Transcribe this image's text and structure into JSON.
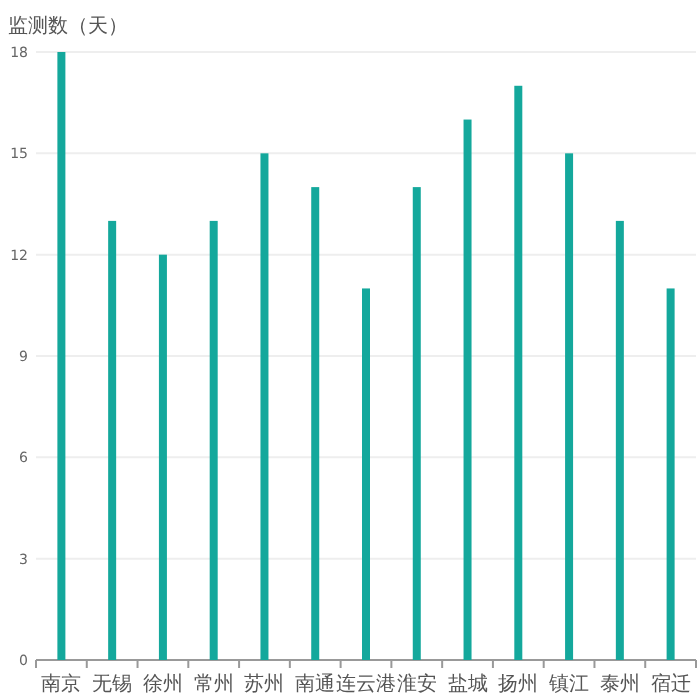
{
  "chart_data": {
    "type": "bar",
    "ylabel": "监测数（天）",
    "categories": [
      "南京",
      "无锡",
      "徐州",
      "常州",
      "苏州",
      "南通",
      "连云港",
      "淮安",
      "盐城",
      "扬州",
      "镇江",
      "泰州",
      "宿迁"
    ],
    "values": [
      18,
      13,
      12,
      13,
      15,
      14,
      11,
      14,
      16,
      17,
      15,
      13,
      11
    ],
    "color": "#14a89c",
    "ylim": [
      0,
      18
    ],
    "yticks": [
      0,
      3,
      6,
      9,
      12,
      15,
      18
    ],
    "grid": "y"
  }
}
